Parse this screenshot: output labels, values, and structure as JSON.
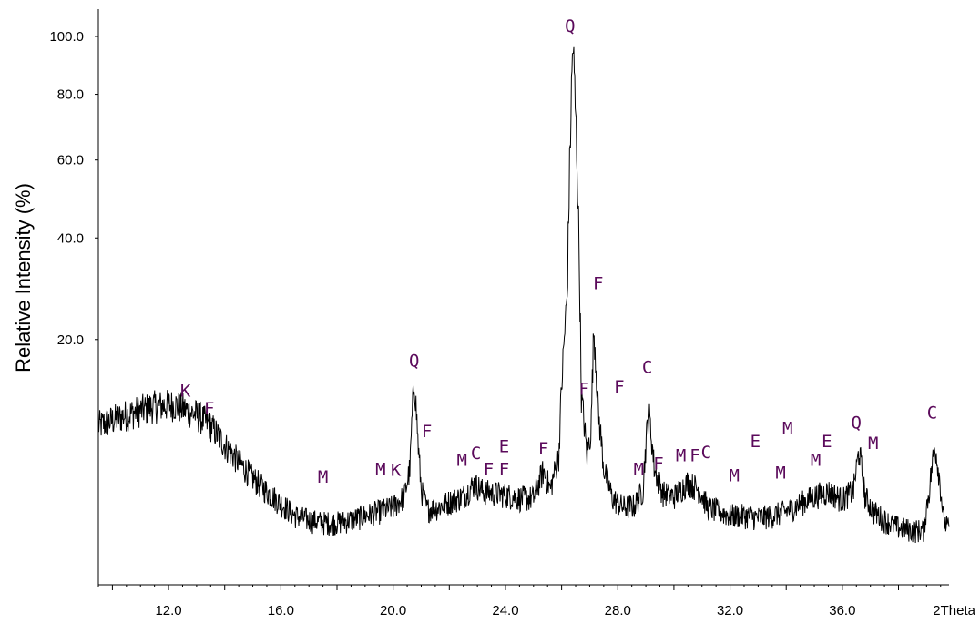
{
  "chart_data": {
    "type": "line",
    "title": "",
    "xlabel": "2Theta",
    "ylabel": "Relative Intensity (%)",
    "xlim": [
      9.5,
      39.8
    ],
    "x_ticks": [
      {
        "value": 12,
        "label": "12.0"
      },
      {
        "value": 16,
        "label": "16.0"
      },
      {
        "value": 20,
        "label": "20.0"
      },
      {
        "value": 24,
        "label": "24.0"
      },
      {
        "value": 28,
        "label": "28.0"
      },
      {
        "value": 32,
        "label": "32.0"
      },
      {
        "value": 36,
        "label": "36.0"
      }
    ],
    "y_axis_scale": "square-root",
    "ylim": [
      0,
      105
    ],
    "y_ticks": [
      {
        "value": 20,
        "label": "20.0"
      },
      {
        "value": 40,
        "label": "40.0"
      },
      {
        "value": 60,
        "label": "60.0"
      },
      {
        "value": 80,
        "label": "80.0"
      },
      {
        "value": 100,
        "label": "100.0"
      }
    ],
    "grid": false,
    "series": [
      {
        "color": "#000000",
        "x": [
          9.5,
          10.5,
          11.5,
          12.2,
          12.6,
          13.0,
          13.5,
          14.0,
          14.5,
          15.0,
          15.5,
          16.0,
          16.5,
          17.0,
          17.5,
          18.0,
          18.5,
          19.0,
          19.5,
          20.0,
          20.4,
          20.6,
          20.75,
          20.9,
          21.0,
          21.2,
          21.6,
          22.0,
          22.5,
          22.9,
          23.2,
          23.6,
          24.0,
          24.5,
          25.0,
          25.35,
          25.6,
          25.9,
          26.2,
          26.4,
          26.55,
          26.7,
          26.9,
          27.05,
          27.15,
          27.3,
          27.5,
          27.8,
          28.2,
          28.6,
          28.9,
          29.1,
          29.3,
          29.6,
          30.0,
          30.5,
          30.9,
          31.2,
          31.6,
          32.0,
          32.5,
          33.0,
          33.5,
          34.0,
          34.5,
          35.0,
          35.5,
          36.0,
          36.4,
          36.6,
          36.8,
          37.1,
          37.5,
          38.0,
          38.5,
          38.9,
          39.1,
          39.3,
          39.6,
          39.8
        ],
        "y": [
          8.4,
          9.6,
          10.6,
          10.8,
          10.2,
          9.6,
          8.4,
          6.5,
          5.0,
          3.8,
          2.9,
          2.2,
          1.6,
          1.4,
          1.3,
          1.3,
          1.4,
          1.6,
          1.8,
          2.0,
          2.6,
          4.5,
          14.0,
          6.0,
          3.0,
          1.9,
          2.0,
          2.3,
          2.6,
          3.4,
          2.9,
          2.8,
          2.7,
          2.5,
          2.5,
          4.3,
          3.0,
          5.5,
          28.0,
          98.0,
          60.0,
          12.0,
          5.5,
          8.0,
          22.0,
          10.0,
          4.5,
          2.5,
          2.0,
          2.1,
          3.0,
          10.0,
          4.5,
          2.8,
          2.6,
          3.5,
          3.0,
          2.0,
          1.8,
          1.6,
          1.6,
          1.5,
          1.6,
          1.8,
          2.2,
          2.6,
          2.9,
          2.4,
          3.0,
          6.0,
          2.6,
          1.8,
          1.4,
          1.1,
          1.0,
          1.0,
          3.0,
          6.5,
          1.4,
          1.0
        ]
      }
    ],
    "annotations": [
      {
        "label": "K",
        "x": 12.6,
        "y": 12.6
      },
      {
        "label": "F",
        "x": 13.45,
        "y": 10.4
      },
      {
        "label": "M",
        "x": 17.5,
        "y": 3.9
      },
      {
        "label": "M",
        "x": 19.55,
        "y": 4.5
      },
      {
        "label": "K",
        "x": 20.1,
        "y": 4.4
      },
      {
        "label": "Q",
        "x": 20.75,
        "y": 16.8
      },
      {
        "label": "F",
        "x": 21.2,
        "y": 7.9
      },
      {
        "label": "M",
        "x": 22.45,
        "y": 5.2
      },
      {
        "label": "C",
        "x": 22.95,
        "y": 5.8
      },
      {
        "label": "F",
        "x": 23.4,
        "y": 4.5
      },
      {
        "label": "F",
        "x": 23.95,
        "y": 4.5
      },
      {
        "label": "E",
        "x": 23.95,
        "y": 6.4
      },
      {
        "label": "F",
        "x": 25.35,
        "y": 6.2
      },
      {
        "label": "Q",
        "x": 26.3,
        "y": 104.0
      },
      {
        "label": "F",
        "x": 26.8,
        "y": 12.8
      },
      {
        "label": "F",
        "x": 27.3,
        "y": 30.3
      },
      {
        "label": "F",
        "x": 28.05,
        "y": 13.1
      },
      {
        "label": "M",
        "x": 28.75,
        "y": 4.5
      },
      {
        "label": "F",
        "x": 29.45,
        "y": 4.9
      },
      {
        "label": "C",
        "x": 29.05,
        "y": 15.8
      },
      {
        "label": "M",
        "x": 30.25,
        "y": 5.6
      },
      {
        "label": "F",
        "x": 30.75,
        "y": 5.6
      },
      {
        "label": "C",
        "x": 31.15,
        "y": 5.9
      },
      {
        "label": "M",
        "x": 32.15,
        "y": 4.0
      },
      {
        "label": "E",
        "x": 32.9,
        "y": 6.9
      },
      {
        "label": "M",
        "x": 33.8,
        "y": 4.2
      },
      {
        "label": "M",
        "x": 34.05,
        "y": 8.2
      },
      {
        "label": "M",
        "x": 35.05,
        "y": 5.2
      },
      {
        "label": "E",
        "x": 35.45,
        "y": 6.9
      },
      {
        "label": "Q",
        "x": 36.5,
        "y": 8.8
      },
      {
        "label": "M",
        "x": 37.1,
        "y": 6.7
      },
      {
        "label": "C",
        "x": 39.2,
        "y": 9.9
      }
    ]
  }
}
